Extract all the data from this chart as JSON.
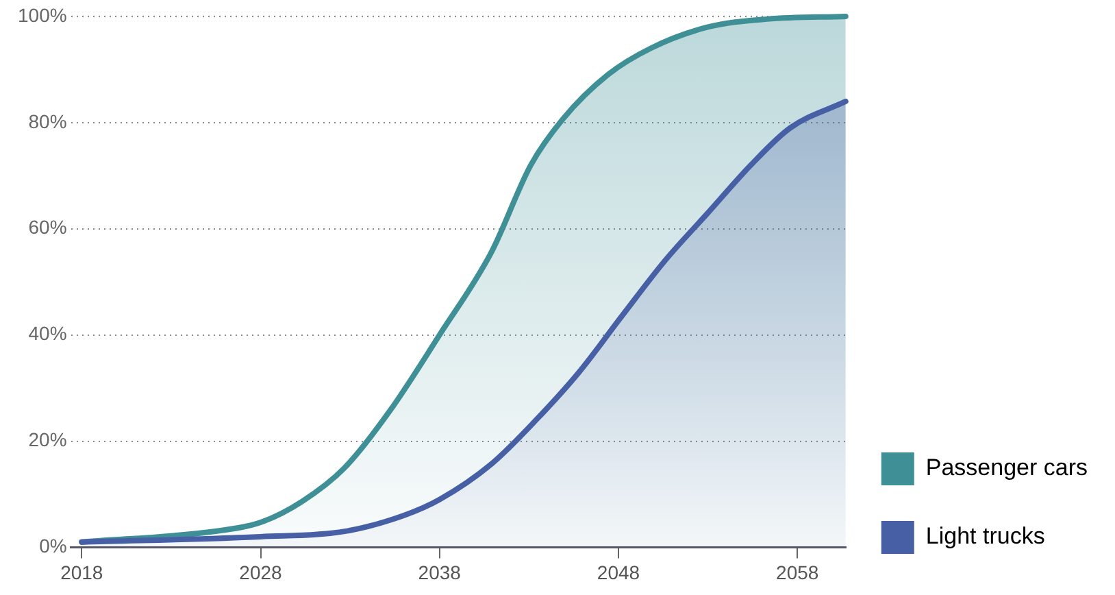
{
  "chart_data": {
    "type": "area",
    "xlim": [
      2017.4,
      2060.7
    ],
    "xticks": [
      2018,
      2028,
      2038,
      2048,
      2058
    ],
    "ylim": [
      0,
      100
    ],
    "yticks": [
      {
        "value": 0,
        "label": "0%"
      },
      {
        "value": 20,
        "label": "20%"
      },
      {
        "value": 40,
        "label": "40%"
      },
      {
        "value": 60,
        "label": "60%"
      },
      {
        "value": 80,
        "label": "80%"
      },
      {
        "value": 100,
        "label": "100%"
      }
    ],
    "grid": "y",
    "legend": "right",
    "line_style": "solid",
    "marker": "none",
    "series": [
      {
        "name": "Passenger cars",
        "color": "#3f8f96",
        "x": [
          2018,
          2025.4,
          2028,
          2030.3,
          2032.7,
          2035.2,
          2038,
          2040.9,
          2043.1,
          2044.9,
          2047.4,
          2049.8,
          2053,
          2056.3,
          2060.7
        ],
        "values": [
          1,
          3,
          4.7,
          8.6,
          15,
          25.6,
          40,
          55.6,
          72,
          80.7,
          89,
          94,
          98,
          99.5,
          100
        ]
      },
      {
        "name": "Light trucks",
        "color": "#4760a5",
        "x": [
          2018,
          2028,
          2032.7,
          2036,
          2038,
          2040.9,
          2043.4,
          2045.8,
          2048.2,
          2050.6,
          2053,
          2055.4,
          2057.6,
          2060.7
        ],
        "values": [
          1,
          2,
          3,
          6,
          9,
          15.7,
          24,
          33,
          43.6,
          54,
          63,
          72,
          79,
          84
        ]
      }
    ]
  }
}
